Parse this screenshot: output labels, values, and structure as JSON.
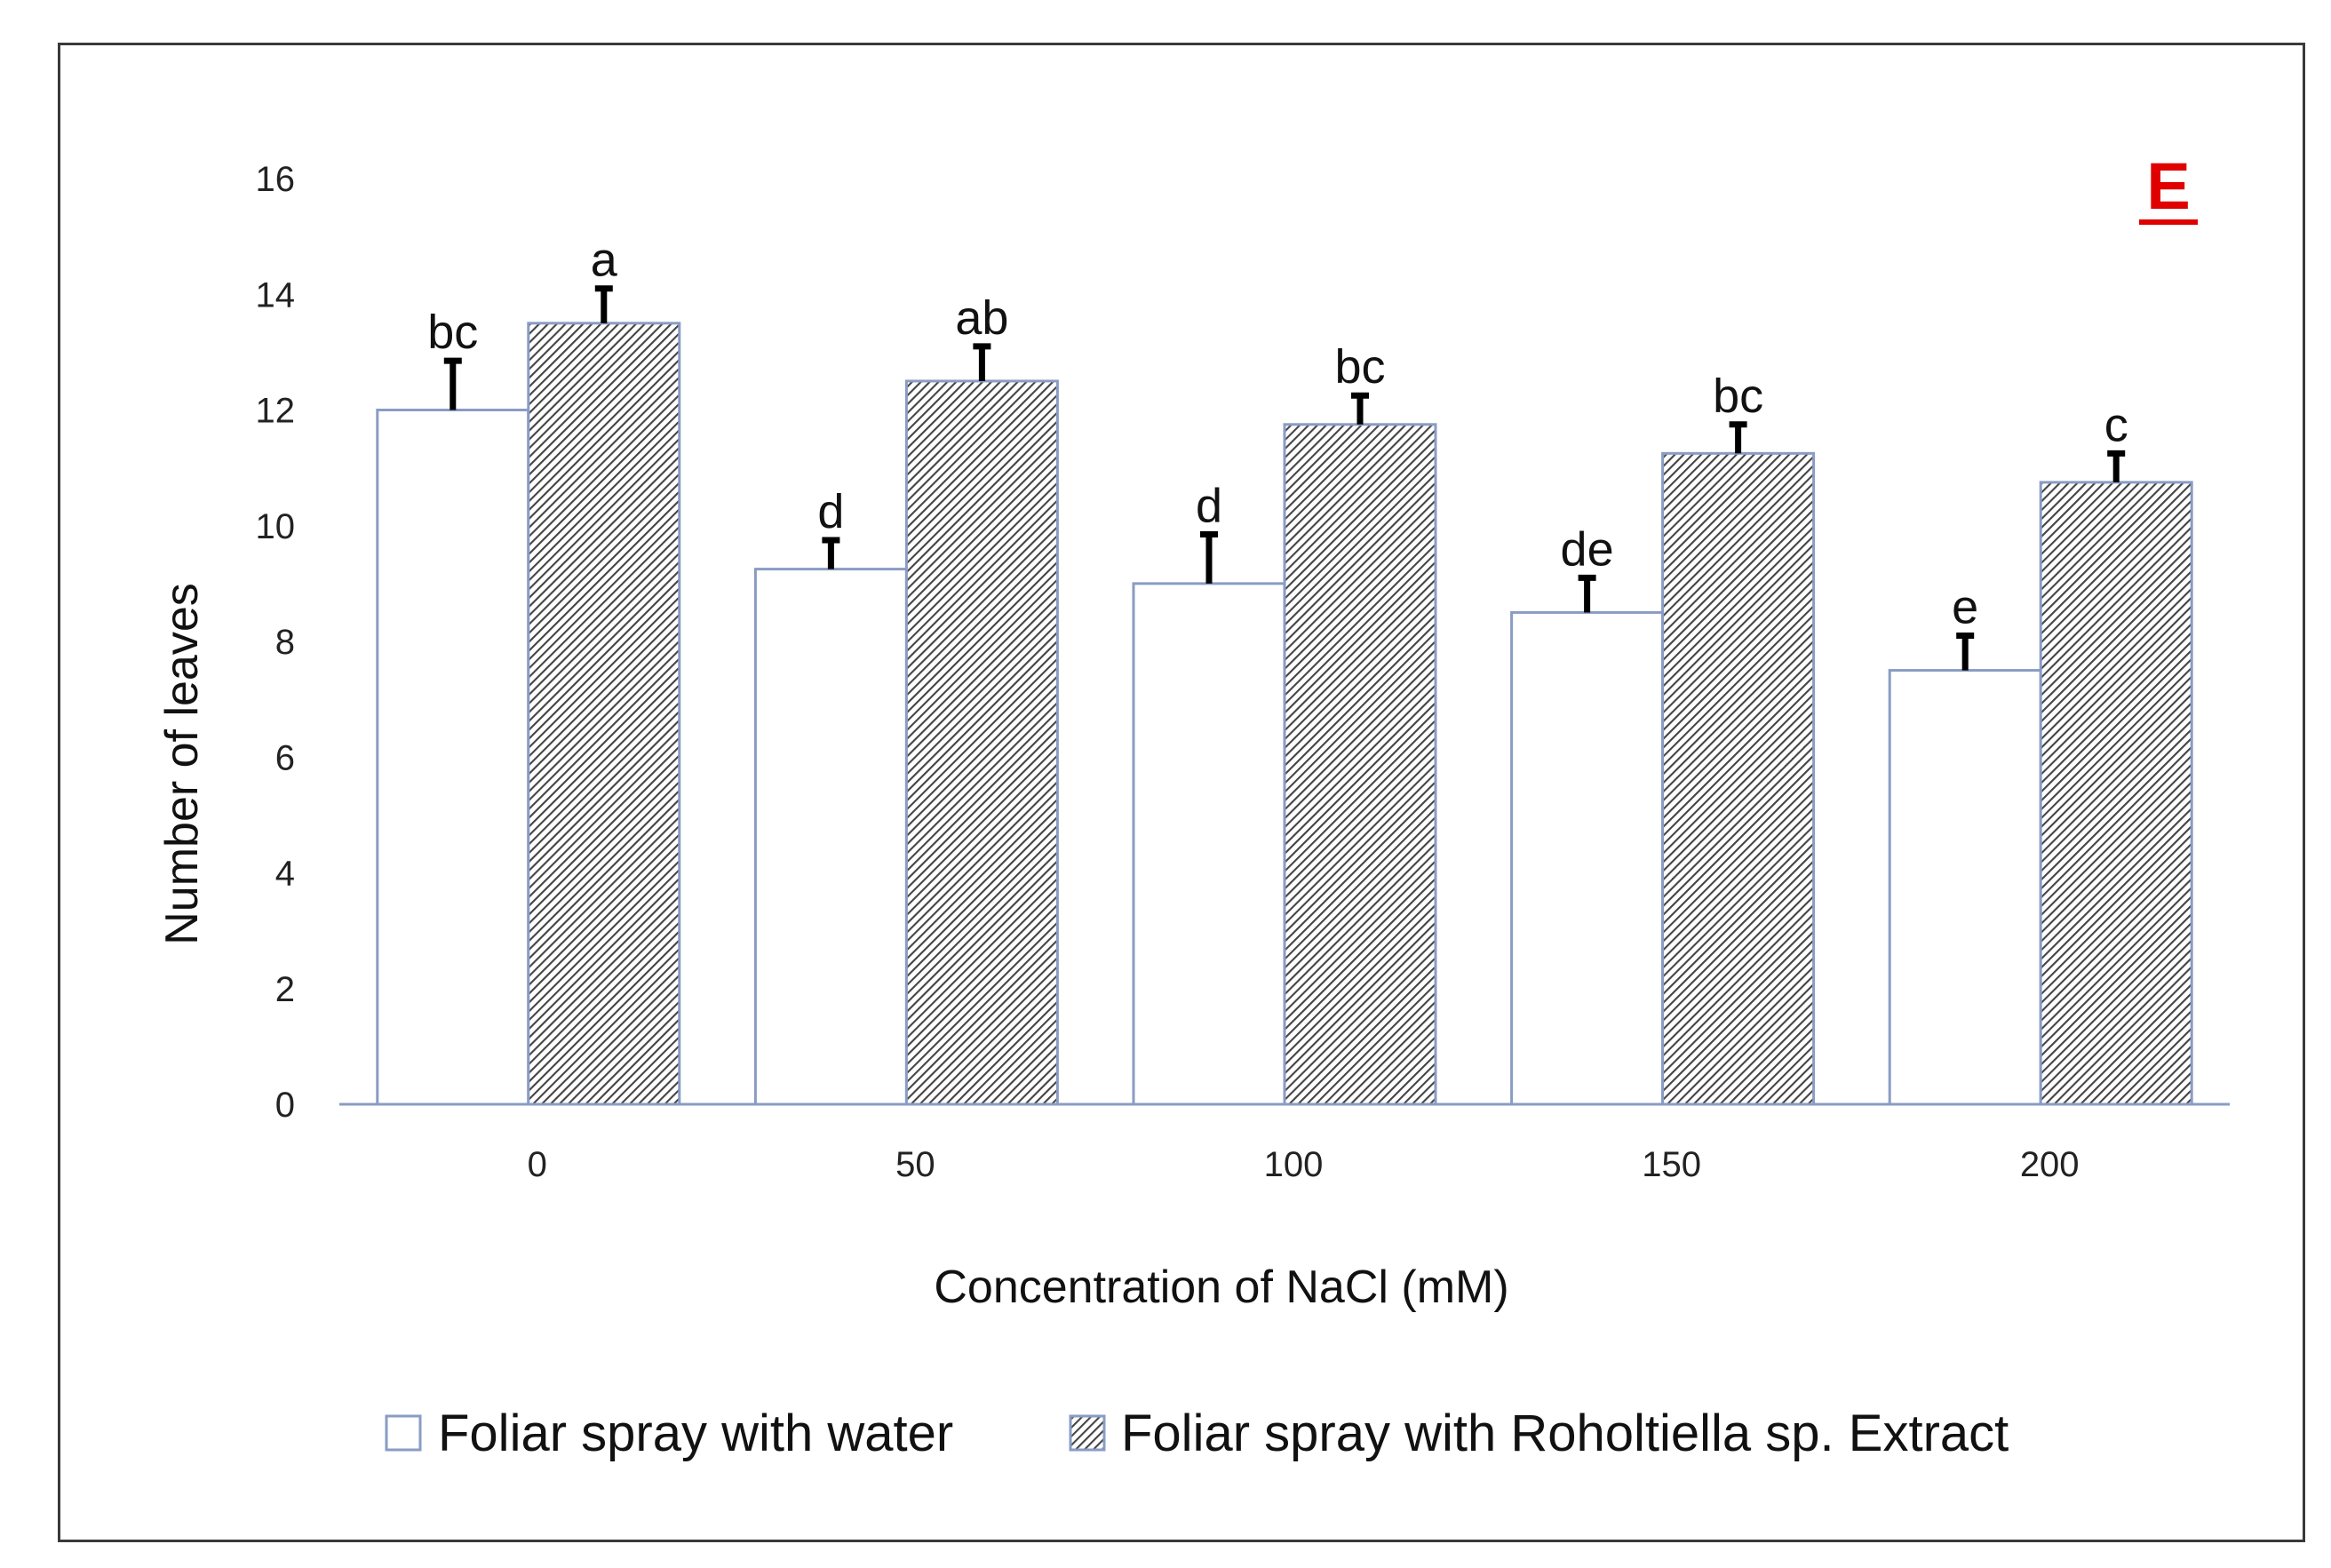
{
  "chart_data": {
    "type": "bar",
    "panel_label": "E",
    "categories": [
      "0",
      "50",
      "100",
      "150",
      "200"
    ],
    "xlabel": "Concentration of NaCl (mM)",
    "ylabel": "Number of leaves",
    "ylim": [
      0,
      16
    ],
    "yticks": [
      "0",
      "2",
      "4",
      "6",
      "8",
      "10",
      "12",
      "14",
      "16"
    ],
    "grid": false,
    "legend_position": "bottom",
    "series": [
      {
        "name": "Foliar spray with water",
        "pattern": "plain",
        "fill": "#ffffff",
        "values": [
          12.0,
          9.25,
          9.0,
          8.5,
          7.5
        ],
        "errors": [
          0.85,
          0.5,
          0.85,
          0.6,
          0.6
        ],
        "significance": [
          "bc",
          "d",
          "d",
          "de",
          "e"
        ]
      },
      {
        "name": "Foliar spray with Roholtiella sp. Extract",
        "pattern": "hatched",
        "fill": "#555555",
        "values": [
          13.5,
          12.5,
          11.75,
          11.25,
          10.75
        ],
        "errors": [
          0.6,
          0.6,
          0.5,
          0.5,
          0.5
        ],
        "significance": [
          "a",
          "ab",
          "bc",
          "bc",
          "c"
        ]
      }
    ],
    "colors": {
      "bar_outline": "#8a9cc4",
      "axis": "#8a9cc4",
      "error_bar": "#000000",
      "panel_label": "#e00000"
    }
  }
}
